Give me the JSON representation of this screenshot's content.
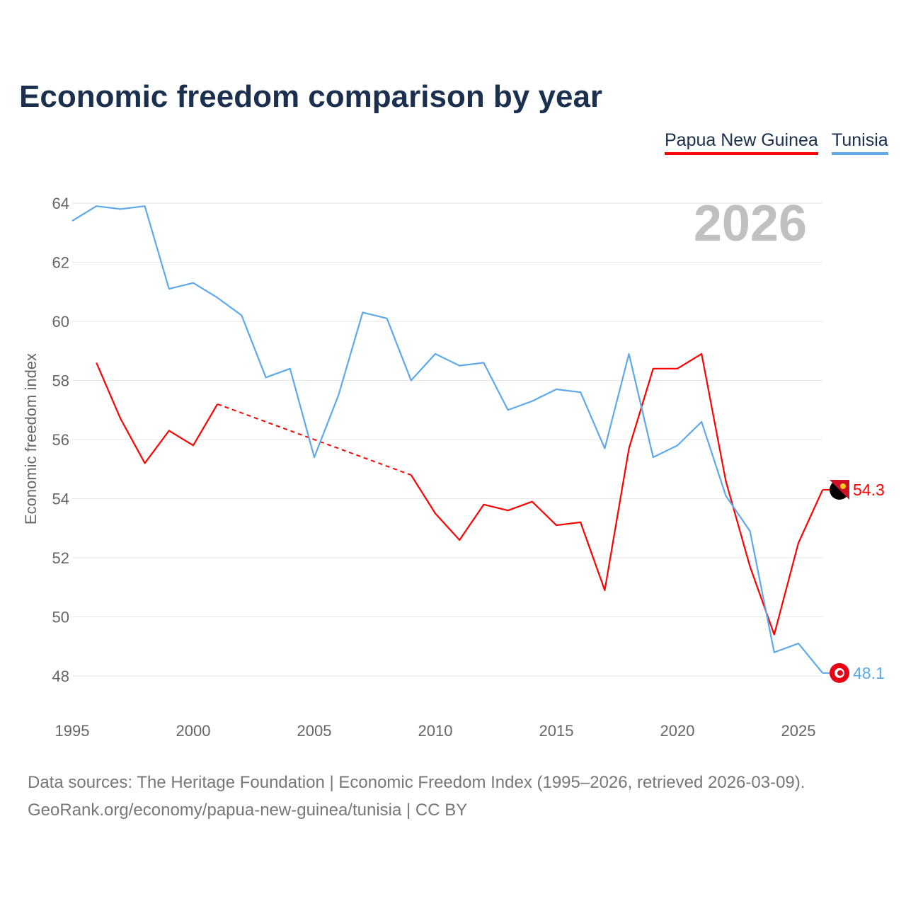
{
  "title": "Economic freedom comparison by year",
  "footer": {
    "line1": "Data sources: The Heritage Foundation | Economic Freedom Index (1995–2026, retrieved 2026-03-09).",
    "line2": "GeoRank.org/economy/papua-new-guinea/tunisia | CC BY"
  },
  "chart_data": {
    "type": "line",
    "title": "Economic freedom comparison by year",
    "xlabel": "",
    "ylabel": "Economic freedom index",
    "year_watermark": "2026",
    "xlim": [
      1995,
      2026
    ],
    "ylim": [
      47,
      65
    ],
    "xticks": [
      1995,
      2000,
      2005,
      2010,
      2015,
      2020,
      2025
    ],
    "yticks": [
      48,
      50,
      52,
      54,
      56,
      58,
      60,
      62,
      64
    ],
    "grid": true,
    "legend_position": "top-right",
    "x": [
      1995,
      1996,
      1997,
      1998,
      1999,
      2000,
      2001,
      2002,
      2003,
      2004,
      2005,
      2006,
      2007,
      2008,
      2009,
      2010,
      2011,
      2012,
      2013,
      2014,
      2015,
      2016,
      2017,
      2018,
      2019,
      2020,
      2021,
      2022,
      2023,
      2024,
      2025,
      2026
    ],
    "series": [
      {
        "name": "Papua New Guinea",
        "color": "#ff0000",
        "end_label": "54.3",
        "flag": "png-flag-icon",
        "values": [
          null,
          58.6,
          56.7,
          55.2,
          56.3,
          55.8,
          57.2,
          null,
          null,
          null,
          null,
          null,
          null,
          null,
          54.8,
          53.5,
          52.6,
          53.8,
          53.6,
          53.9,
          53.1,
          53.2,
          50.9,
          55.7,
          58.4,
          58.4,
          58.9,
          54.6,
          51.7,
          49.4,
          52.5,
          54.3
        ]
      },
      {
        "name": "Tunisia",
        "color": "#5ea8ec",
        "end_label": "48.1",
        "flag": "tunisia-flag-icon",
        "values": [
          63.4,
          63.9,
          63.8,
          63.9,
          61.1,
          61.3,
          60.8,
          60.2,
          58.1,
          58.4,
          55.4,
          57.5,
          60.3,
          60.1,
          58.0,
          58.9,
          58.5,
          58.6,
          57.0,
          57.3,
          57.7,
          57.6,
          55.7,
          58.9,
          55.4,
          55.8,
          56.6,
          54.1,
          52.9,
          48.8,
          49.1,
          48.1
        ]
      }
    ]
  }
}
